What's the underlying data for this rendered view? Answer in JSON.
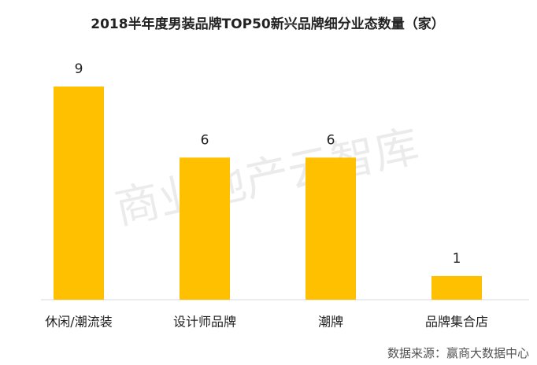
{
  "chart_data": {
    "type": "bar",
    "title": "2018半年度男装品牌TOP50新兴品牌细分业态数量（家）",
    "categories": [
      "休闲/潮流装",
      "设计师品牌",
      "潮牌",
      "品牌集合店"
    ],
    "values": [
      9,
      6,
      6,
      1
    ],
    "color": "#ffc000",
    "watermark": "商业地产云智库",
    "source": "数据来源：赢商大数据中心"
  }
}
